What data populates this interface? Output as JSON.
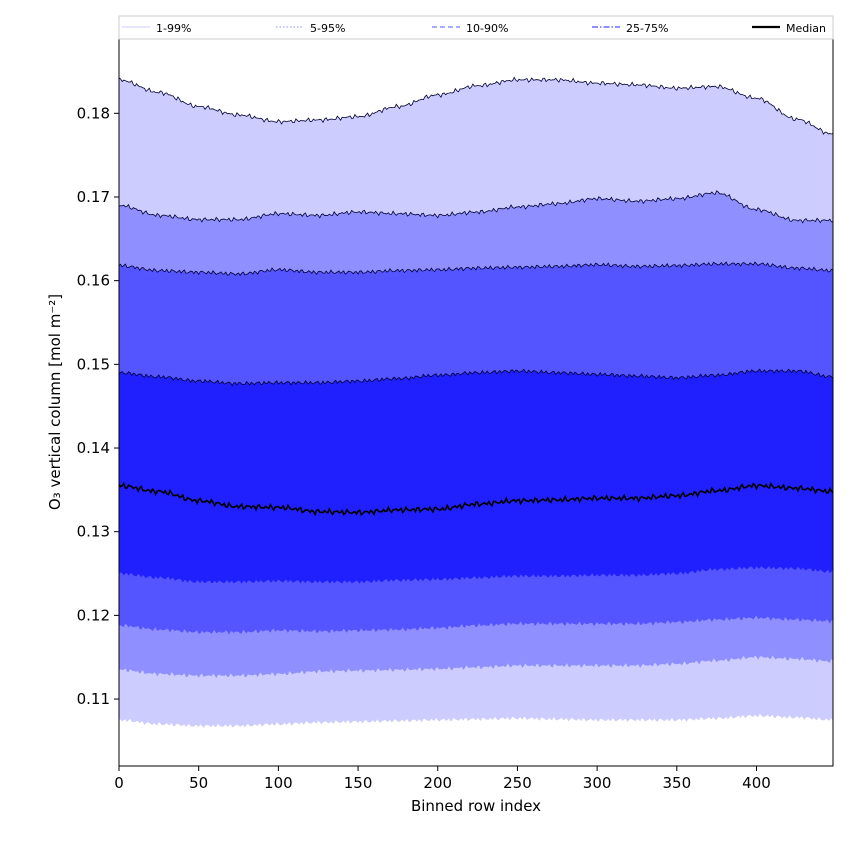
{
  "chart_data": {
    "type": "area",
    "title": "",
    "xlabel": "Binned row index",
    "ylabel": "O₃ vertical column [mol m⁻²]",
    "xlim": [
      0,
      448
    ],
    "ylim": [
      0.102,
      0.189
    ],
    "xticks": [
      0,
      50,
      100,
      150,
      200,
      250,
      300,
      350,
      400
    ],
    "yticks": [
      0.11,
      0.12,
      0.13,
      0.14,
      0.15,
      0.16,
      0.17,
      0.18
    ],
    "ytick_labels": [
      "0.11",
      "0.12",
      "0.13",
      "0.14",
      "0.15",
      "0.16",
      "0.17",
      "0.18"
    ],
    "legend_position": "top, spanning full width",
    "grid": false,
    "x": [
      0,
      25,
      50,
      75,
      100,
      125,
      150,
      175,
      200,
      225,
      250,
      275,
      300,
      325,
      350,
      375,
      400,
      425,
      448
    ],
    "bands": [
      {
        "name": "1-99%",
        "fill_color": "#ccccff",
        "line_style": "solid",
        "lower": [
          0.1075,
          0.107,
          0.1068,
          0.1068,
          0.107,
          0.1072,
          0.1073,
          0.1074,
          0.1075,
          0.1076,
          0.1077,
          0.1076,
          0.1075,
          0.1075,
          0.1075,
          0.1077,
          0.108,
          0.1078,
          0.1075
        ],
        "upper": [
          0.184,
          0.1825,
          0.1808,
          0.1798,
          0.179,
          0.1792,
          0.1796,
          0.1808,
          0.1822,
          0.1833,
          0.184,
          0.184,
          0.1836,
          0.1834,
          0.183,
          0.1832,
          0.1818,
          0.1793,
          0.1775
        ]
      },
      {
        "name": "5-95%",
        "fill_color": "#8f8fff",
        "line_style": "dotted",
        "lower": [
          0.1135,
          0.113,
          0.1128,
          0.1128,
          0.113,
          0.1133,
          0.1134,
          0.1135,
          0.1136,
          0.1138,
          0.114,
          0.114,
          0.114,
          0.114,
          0.1142,
          0.1146,
          0.115,
          0.1148,
          0.1145
        ],
        "upper": [
          0.169,
          0.1678,
          0.1673,
          0.1673,
          0.168,
          0.1678,
          0.1682,
          0.168,
          0.1678,
          0.1682,
          0.1688,
          0.1692,
          0.1698,
          0.1695,
          0.1698,
          0.1705,
          0.1685,
          0.1672,
          0.1672
        ]
      },
      {
        "name": "10-90%",
        "fill_color": "#5555ff",
        "line_style": "dashed",
        "lower": [
          0.1188,
          0.1183,
          0.118,
          0.118,
          0.1182,
          0.1181,
          0.1182,
          0.1183,
          0.1185,
          0.1188,
          0.119,
          0.119,
          0.119,
          0.119,
          0.1192,
          0.1195,
          0.1197,
          0.1195,
          0.1193
        ],
        "upper": [
          0.1618,
          0.1612,
          0.161,
          0.1608,
          0.1613,
          0.161,
          0.161,
          0.1612,
          0.1613,
          0.1615,
          0.1616,
          0.1617,
          0.1619,
          0.1617,
          0.1618,
          0.162,
          0.162,
          0.1615,
          0.1612
        ]
      },
      {
        "name": "25-75%",
        "fill_color": "#2020ff",
        "line_style": "dashdot",
        "lower": [
          0.125,
          0.1245,
          0.124,
          0.124,
          0.1241,
          0.124,
          0.124,
          0.1242,
          0.1243,
          0.1245,
          0.1247,
          0.1247,
          0.1248,
          0.1248,
          0.125,
          0.1255,
          0.1257,
          0.1256,
          0.1252
        ],
        "upper": [
          0.149,
          0.1485,
          0.148,
          0.1477,
          0.1478,
          0.1478,
          0.148,
          0.1483,
          0.1487,
          0.149,
          0.1492,
          0.149,
          0.1488,
          0.1486,
          0.1484,
          0.1487,
          0.1492,
          0.1492,
          0.1485
        ]
      }
    ],
    "median": {
      "name": "Median",
      "color": "#000000",
      "values": [
        0.1355,
        0.1348,
        0.1337,
        0.133,
        0.1329,
        0.1324,
        0.1323,
        0.1326,
        0.1327,
        0.1333,
        0.1337,
        0.1338,
        0.134,
        0.134,
        0.1343,
        0.1349,
        0.1355,
        0.1352,
        0.1348
      ]
    }
  }
}
